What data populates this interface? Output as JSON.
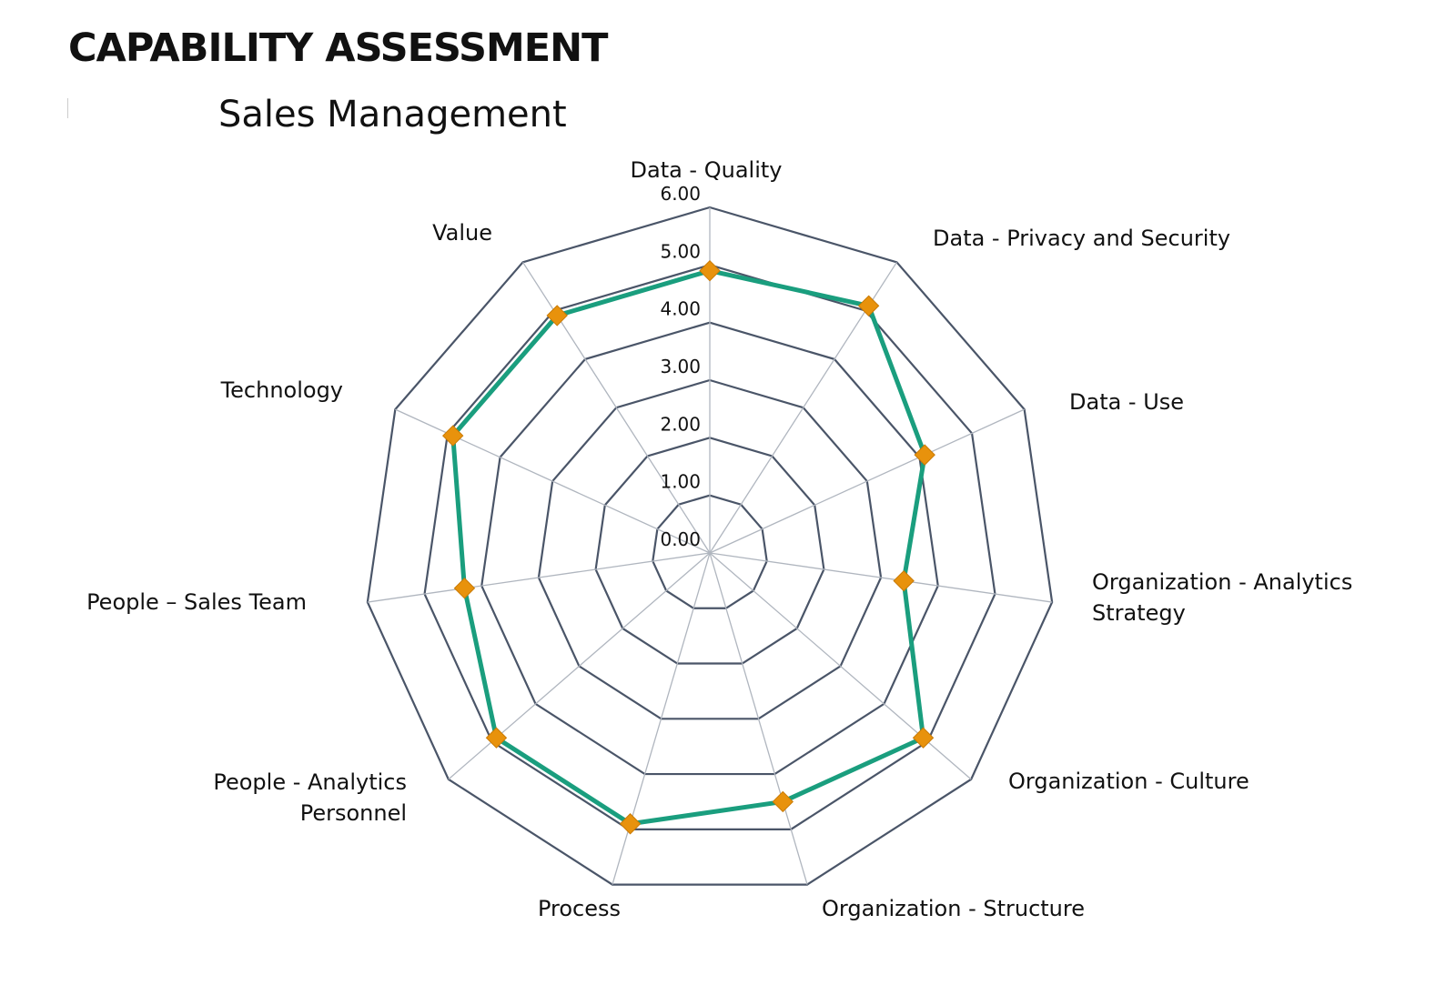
{
  "header": {
    "title": "CAPABILITY ASSESSMENT",
    "subtitle": "Sales Management"
  },
  "chart_data": {
    "type": "radar",
    "title": "Sales Management",
    "axes": [
      "Data - Quality",
      "Data - Privacy and Security",
      "Data - Use",
      "Organization - Analytics Strategy",
      "Organization - Culture",
      "Organization - Structure",
      "Process",
      "People - Analytics Personnel",
      "People – Sales Team",
      "Technology",
      "Value"
    ],
    "series": [
      {
        "values": [
          4.9,
          5.1,
          4.1,
          3.4,
          4.9,
          4.5,
          4.9,
          4.9,
          4.3,
          4.9,
          4.9
        ]
      }
    ],
    "rlim": [
      0,
      6
    ],
    "ticks": [
      "0.00",
      "1.00",
      "2.00",
      "3.00",
      "4.00",
      "5.00",
      "6.00"
    ],
    "colors": {
      "line": "#1a9e7e",
      "marker": "#e8920c",
      "grid": "#4a5568",
      "spoke": "#b0b6bf"
    },
    "grid": true,
    "legend": "none"
  }
}
